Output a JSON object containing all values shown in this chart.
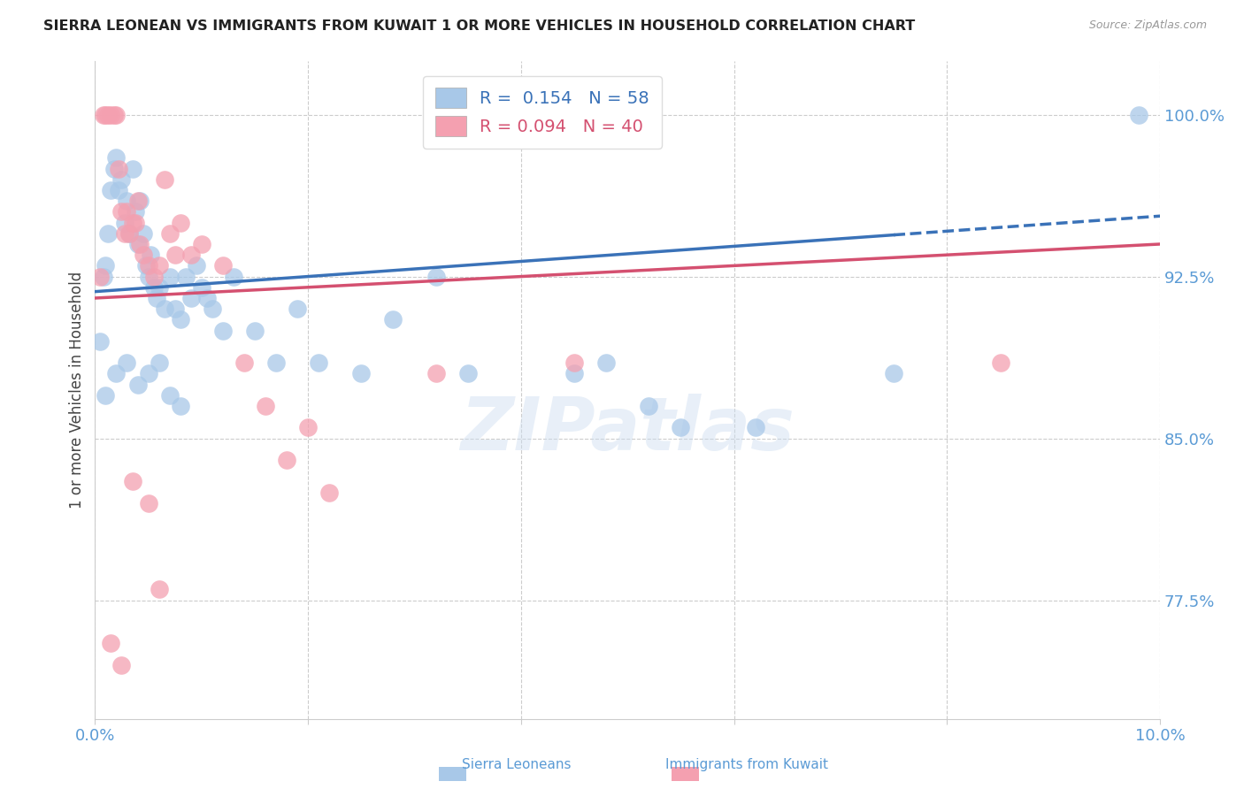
{
  "title": "SIERRA LEONEAN VS IMMIGRANTS FROM KUWAIT 1 OR MORE VEHICLES IN HOUSEHOLD CORRELATION CHART",
  "source": "Source: ZipAtlas.com",
  "ylabel": "1 or more Vehicles in Household",
  "xlim": [
    0.0,
    10.0
  ],
  "ylim": [
    72.0,
    102.5
  ],
  "yticks": [
    77.5,
    85.0,
    92.5,
    100.0
  ],
  "xticks": [
    0.0,
    2.0,
    4.0,
    6.0,
    8.0,
    10.0
  ],
  "blue_label": "Sierra Leoneans",
  "pink_label": "Immigrants from Kuwait",
  "blue_R": "0.154",
  "blue_N": "58",
  "pink_R": "0.094",
  "pink_N": "40",
  "blue_color": "#a8c8e8",
  "pink_color": "#f4a0b0",
  "blue_line_color": "#3a72b8",
  "pink_line_color": "#d45070",
  "axis_color": "#5b9bd5",
  "background_color": "#ffffff",
  "grid_color": "#cccccc",
  "watermark": "ZIPatlas",
  "blue_x": [
    0.05,
    0.08,
    0.1,
    0.12,
    0.15,
    0.18,
    0.2,
    0.22,
    0.25,
    0.28,
    0.3,
    0.32,
    0.35,
    0.38,
    0.4,
    0.42,
    0.45,
    0.48,
    0.5,
    0.52,
    0.55,
    0.58,
    0.6,
    0.65,
    0.7,
    0.75,
    0.8,
    0.85,
    0.9,
    0.95,
    1.0,
    1.05,
    1.1,
    1.2,
    1.3,
    1.5,
    1.7,
    1.9,
    2.1,
    2.5,
    2.8,
    3.2,
    3.5,
    4.5,
    4.8,
    5.2,
    5.5,
    6.2,
    7.5,
    9.8,
    0.1,
    0.2,
    0.3,
    0.4,
    0.5,
    0.6,
    0.7,
    0.8
  ],
  "blue_y": [
    89.5,
    92.5,
    93.0,
    94.5,
    96.5,
    97.5,
    98.0,
    96.5,
    97.0,
    95.0,
    96.0,
    94.5,
    97.5,
    95.5,
    94.0,
    96.0,
    94.5,
    93.0,
    92.5,
    93.5,
    92.0,
    91.5,
    92.0,
    91.0,
    92.5,
    91.0,
    90.5,
    92.5,
    91.5,
    93.0,
    92.0,
    91.5,
    91.0,
    90.0,
    92.5,
    90.0,
    88.5,
    91.0,
    88.5,
    88.0,
    90.5,
    92.5,
    88.0,
    88.0,
    88.5,
    86.5,
    85.5,
    85.5,
    88.0,
    100.0,
    87.0,
    88.0,
    88.5,
    87.5,
    88.0,
    88.5,
    87.0,
    86.5
  ],
  "pink_x": [
    0.05,
    0.08,
    0.1,
    0.12,
    0.15,
    0.18,
    0.2,
    0.22,
    0.25,
    0.28,
    0.3,
    0.32,
    0.35,
    0.38,
    0.4,
    0.42,
    0.45,
    0.5,
    0.55,
    0.6,
    0.65,
    0.7,
    0.75,
    0.8,
    0.9,
    1.0,
    1.2,
    1.4,
    1.6,
    1.8,
    2.0,
    2.2,
    3.2,
    4.5,
    8.5,
    0.15,
    0.25,
    0.35,
    0.5,
    0.6
  ],
  "pink_y": [
    92.5,
    100.0,
    100.0,
    100.0,
    100.0,
    100.0,
    100.0,
    97.5,
    95.5,
    94.5,
    95.5,
    94.5,
    95.0,
    95.0,
    96.0,
    94.0,
    93.5,
    93.0,
    92.5,
    93.0,
    97.0,
    94.5,
    93.5,
    95.0,
    93.5,
    94.0,
    93.0,
    88.5,
    86.5,
    84.0,
    85.5,
    82.5,
    88.0,
    88.5,
    88.5,
    75.5,
    74.5,
    83.0,
    82.0,
    78.0
  ]
}
